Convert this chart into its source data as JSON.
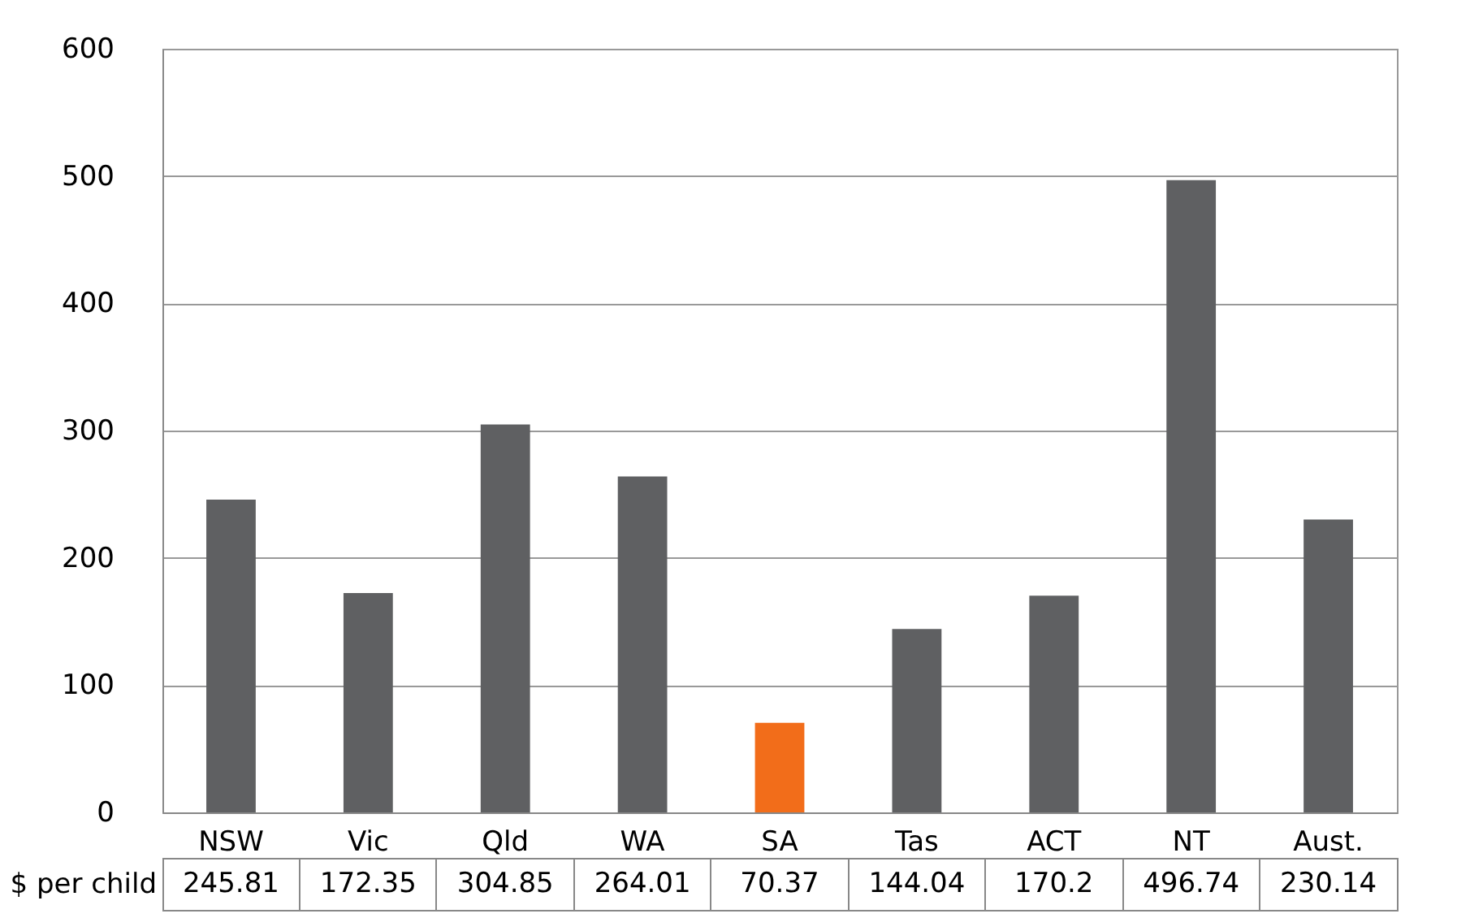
{
  "chart_data": {
    "type": "bar",
    "categories": [
      "NSW",
      "Vic",
      "Qld",
      "WA",
      "SA",
      "Tas",
      "ACT",
      "NT",
      "Aust."
    ],
    "series": [
      {
        "name": "$ per child",
        "colors": [
          "#5f6062",
          "#5f6062",
          "#5f6062",
          "#5f6062",
          "#f26d1a",
          "#5f6062",
          "#5f6062",
          "#5f6062",
          "#5f6062"
        ],
        "values": [
          245.81,
          172.35,
          304.85,
          264.01,
          70.37,
          144.04,
          170.2,
          496.74,
          230.14
        ]
      }
    ],
    "ylim": [
      0,
      600
    ],
    "yticks": [
      0,
      100,
      200,
      300,
      400,
      500,
      600
    ],
    "grid": "y",
    "data_labels": true,
    "legend": false
  }
}
